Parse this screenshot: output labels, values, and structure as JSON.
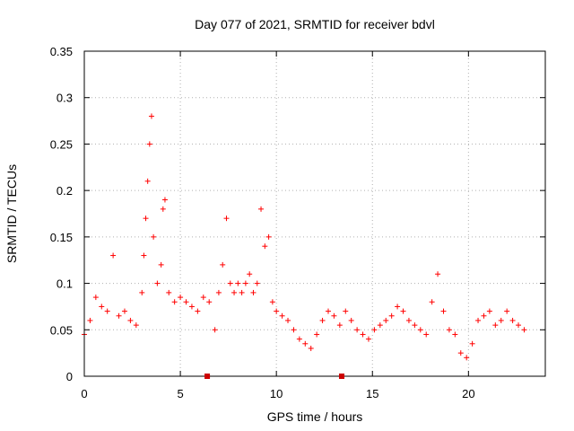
{
  "chart_data": {
    "type": "scatter",
    "title": "Day 077 of 2021, SRMTID for receiver bdvl",
    "xlabel": "GPS time / hours",
    "ylabel": "SRMTID / TECUs",
    "xlim": [
      0,
      24
    ],
    "ylim": [
      0,
      0.35
    ],
    "grid": true,
    "marker": "+",
    "colors": {
      "points": "#ff0000",
      "gap_markers": "#cc0000",
      "grid": "#b0b0b0"
    },
    "x_ticks": [
      {
        "value": 0,
        "label": "0"
      },
      {
        "value": 5,
        "label": "5"
      },
      {
        "value": 10,
        "label": "10"
      },
      {
        "value": 15,
        "label": "15"
      },
      {
        "value": 20,
        "label": "20"
      }
    ],
    "y_ticks": [
      {
        "value": 0,
        "label": "0"
      },
      {
        "value": 0.05,
        "label": "0.05"
      },
      {
        "value": 0.1,
        "label": "0.1"
      },
      {
        "value": 0.15,
        "label": "0.15"
      },
      {
        "value": 0.2,
        "label": "0.2"
      },
      {
        "value": 0.25,
        "label": "0.25"
      },
      {
        "value": 0.3,
        "label": "0.3"
      },
      {
        "value": 0.35,
        "label": "0.35"
      }
    ],
    "gap_markers_x": [
      6.4,
      13.4
    ],
    "series": [
      {
        "name": "SRMTID",
        "x": [
          0.0,
          0.3,
          0.6,
          0.9,
          1.2,
          1.5,
          1.8,
          2.1,
          2.4,
          2.7,
          3.0,
          3.1,
          3.2,
          3.3,
          3.4,
          3.5,
          3.6,
          3.8,
          4.0,
          4.1,
          4.2,
          4.4,
          4.7,
          5.0,
          5.3,
          5.6,
          5.9,
          6.2,
          6.5,
          6.8,
          7.0,
          7.2,
          7.4,
          7.6,
          7.8,
          8.0,
          8.2,
          8.4,
          8.6,
          8.8,
          9.0,
          9.2,
          9.4,
          9.6,
          9.8,
          10.0,
          10.3,
          10.6,
          10.9,
          11.2,
          11.5,
          11.8,
          12.1,
          12.4,
          12.7,
          13.0,
          13.3,
          13.6,
          13.9,
          14.2,
          14.5,
          14.8,
          15.1,
          15.4,
          15.7,
          16.0,
          16.3,
          16.6,
          16.9,
          17.2,
          17.5,
          17.8,
          18.1,
          18.4,
          18.7,
          19.0,
          19.3,
          19.6,
          19.9,
          20.2,
          20.5,
          20.8,
          21.1,
          21.4,
          21.7,
          22.0,
          22.3,
          22.6,
          22.9
        ],
        "y": [
          0.045,
          0.06,
          0.085,
          0.075,
          0.07,
          0.13,
          0.065,
          0.07,
          0.06,
          0.055,
          0.09,
          0.13,
          0.17,
          0.21,
          0.25,
          0.28,
          0.15,
          0.1,
          0.12,
          0.18,
          0.19,
          0.09,
          0.08,
          0.085,
          0.08,
          0.075,
          0.07,
          0.085,
          0.08,
          0.05,
          0.09,
          0.12,
          0.17,
          0.1,
          0.09,
          0.1,
          0.09,
          0.1,
          0.11,
          0.09,
          0.1,
          0.18,
          0.14,
          0.15,
          0.08,
          0.07,
          0.065,
          0.06,
          0.05,
          0.04,
          0.035,
          0.03,
          0.045,
          0.06,
          0.07,
          0.065,
          0.055,
          0.07,
          0.06,
          0.05,
          0.045,
          0.04,
          0.05,
          0.055,
          0.06,
          0.065,
          0.075,
          0.07,
          0.06,
          0.055,
          0.05,
          0.045,
          0.08,
          0.11,
          0.07,
          0.05,
          0.045,
          0.025,
          0.02,
          0.035,
          0.06,
          0.065,
          0.07,
          0.055,
          0.06,
          0.07,
          0.06,
          0.055,
          0.05
        ]
      }
    ]
  }
}
